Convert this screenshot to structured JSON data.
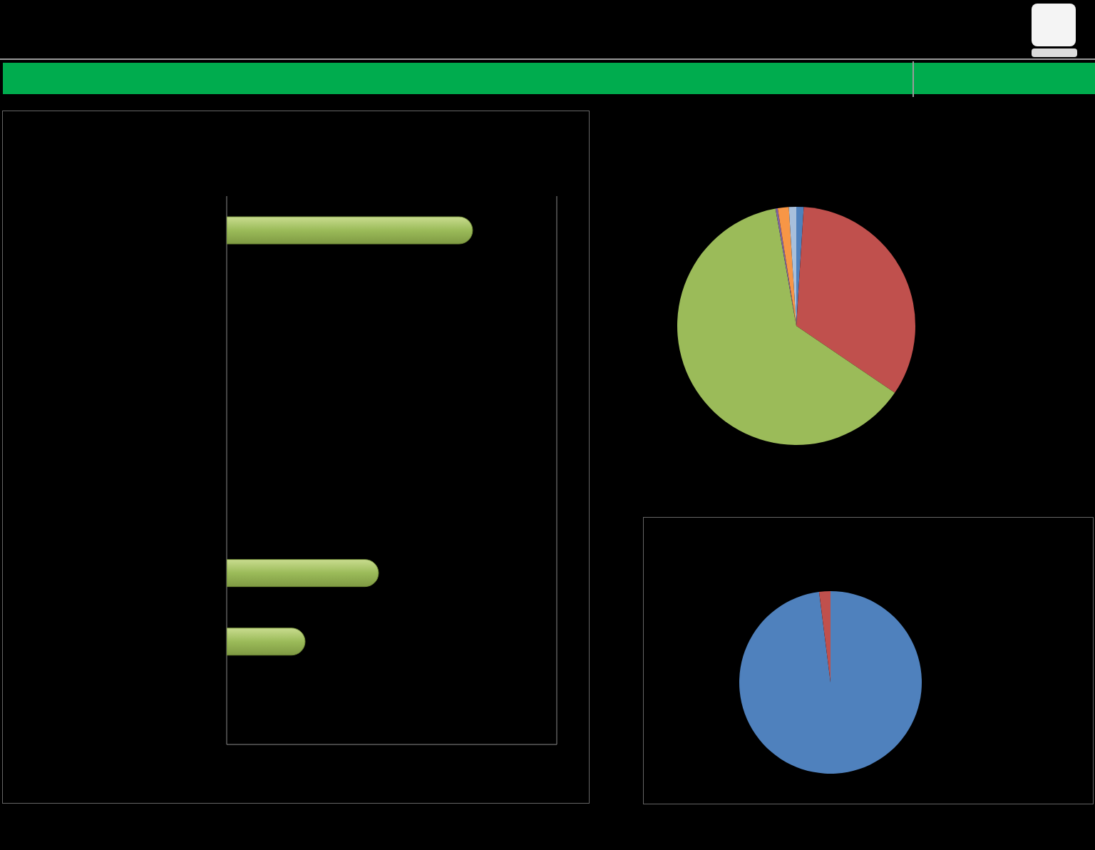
{
  "chart_data": [
    {
      "type": "bar",
      "orientation": "horizontal",
      "categories": [
        null,
        null,
        null,
        null,
        null,
        null,
        null,
        null
      ],
      "values": [
        2.98,
        0,
        0,
        0,
        0,
        1.84,
        0.95,
        0
      ],
      "color": "#9bbb59",
      "xlim": [
        0,
        4
      ],
      "xticks": [
        0,
        1,
        2,
        3,
        4
      ],
      "grid": true,
      "tick_labels": false
    },
    {
      "type": "pie",
      "values": [
        1,
        33.5,
        62.7,
        0.3,
        1.5,
        1
      ],
      "colors": [
        "#4f81bd",
        "#c0504d",
        "#9bbb59",
        "#8064a2",
        "#f79646",
        "#a7bfdc"
      ]
    },
    {
      "type": "pie",
      "values": [
        98,
        2
      ],
      "colors": [
        "#4f81bd",
        "#c0504d"
      ]
    }
  ]
}
